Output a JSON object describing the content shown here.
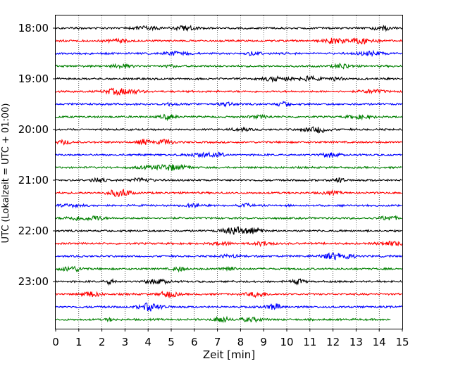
{
  "chart_data": {
    "type": "line",
    "title": "",
    "xlabel": "Zeit  [min]",
    "ylabel": "UTC (Lokalzeit = UTC + 01:00)",
    "xlim": [
      0,
      15
    ],
    "x_ticks": [
      "0",
      "1",
      "2",
      "3",
      "4",
      "5",
      "6",
      "7",
      "8",
      "9",
      "10",
      "11",
      "12",
      "13",
      "14",
      "15"
    ],
    "y_ticks": [
      "18:00",
      "19:00",
      "20:00",
      "21:00",
      "22:00",
      "23:00"
    ],
    "grid": "vertical dotted",
    "row_interval_min": 15,
    "row_colors": [
      "#000000",
      "#ff0000",
      "#0000ff",
      "#008000"
    ],
    "series": [
      {
        "start": "18:00",
        "x_end": 15
      },
      {
        "start": "18:15",
        "x_end": 15
      },
      {
        "start": "18:30",
        "x_end": 15
      },
      {
        "start": "18:45",
        "x_end": 15
      },
      {
        "start": "19:00",
        "x_end": 15
      },
      {
        "start": "19:15",
        "x_end": 15
      },
      {
        "start": "19:30",
        "x_end": 15
      },
      {
        "start": "19:45",
        "x_end": 15
      },
      {
        "start": "20:00",
        "x_end": 15
      },
      {
        "start": "20:15",
        "x_end": 15
      },
      {
        "start": "20:30",
        "x_end": 15
      },
      {
        "start": "20:45",
        "x_end": 15
      },
      {
        "start": "21:00",
        "x_end": 15
      },
      {
        "start": "21:15",
        "x_end": 15
      },
      {
        "start": "21:30",
        "x_end": 15
      },
      {
        "start": "21:45",
        "x_end": 15
      },
      {
        "start": "22:00",
        "x_end": 15
      },
      {
        "start": "22:15",
        "x_end": 15
      },
      {
        "start": "22:30",
        "x_end": 15
      },
      {
        "start": "22:45",
        "x_end": 15
      },
      {
        "start": "23:00",
        "x_end": 15
      },
      {
        "start": "23:15",
        "x_end": 15
      },
      {
        "start": "23:30",
        "x_end": 15
      },
      {
        "start": "23:45",
        "x_end": 14.5
      }
    ]
  }
}
